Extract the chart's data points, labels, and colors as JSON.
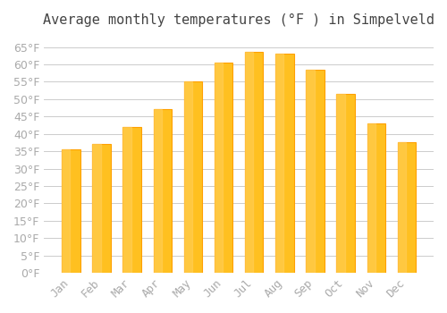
{
  "title": "Average monthly temperatures (°F ) in Simpelveld",
  "months": [
    "Jan",
    "Feb",
    "Mar",
    "Apr",
    "May",
    "Jun",
    "Jul",
    "Aug",
    "Sep",
    "Oct",
    "Nov",
    "Dec"
  ],
  "values": [
    35.5,
    37,
    42,
    47,
    55,
    60.5,
    63.5,
    63,
    58.5,
    51.5,
    43,
    37.5
  ],
  "bar_color_face": "#FFC020",
  "bar_color_edge": "#FFA000",
  "background_color": "#FFFFFF",
  "grid_color": "#CCCCCC",
  "ylim": [
    0,
    68
  ],
  "yticks": [
    0,
    5,
    10,
    15,
    20,
    25,
    30,
    35,
    40,
    45,
    50,
    55,
    60,
    65
  ],
  "title_fontsize": 11,
  "tick_fontsize": 9,
  "tick_color": "#AAAAAA",
  "font_family": "monospace"
}
